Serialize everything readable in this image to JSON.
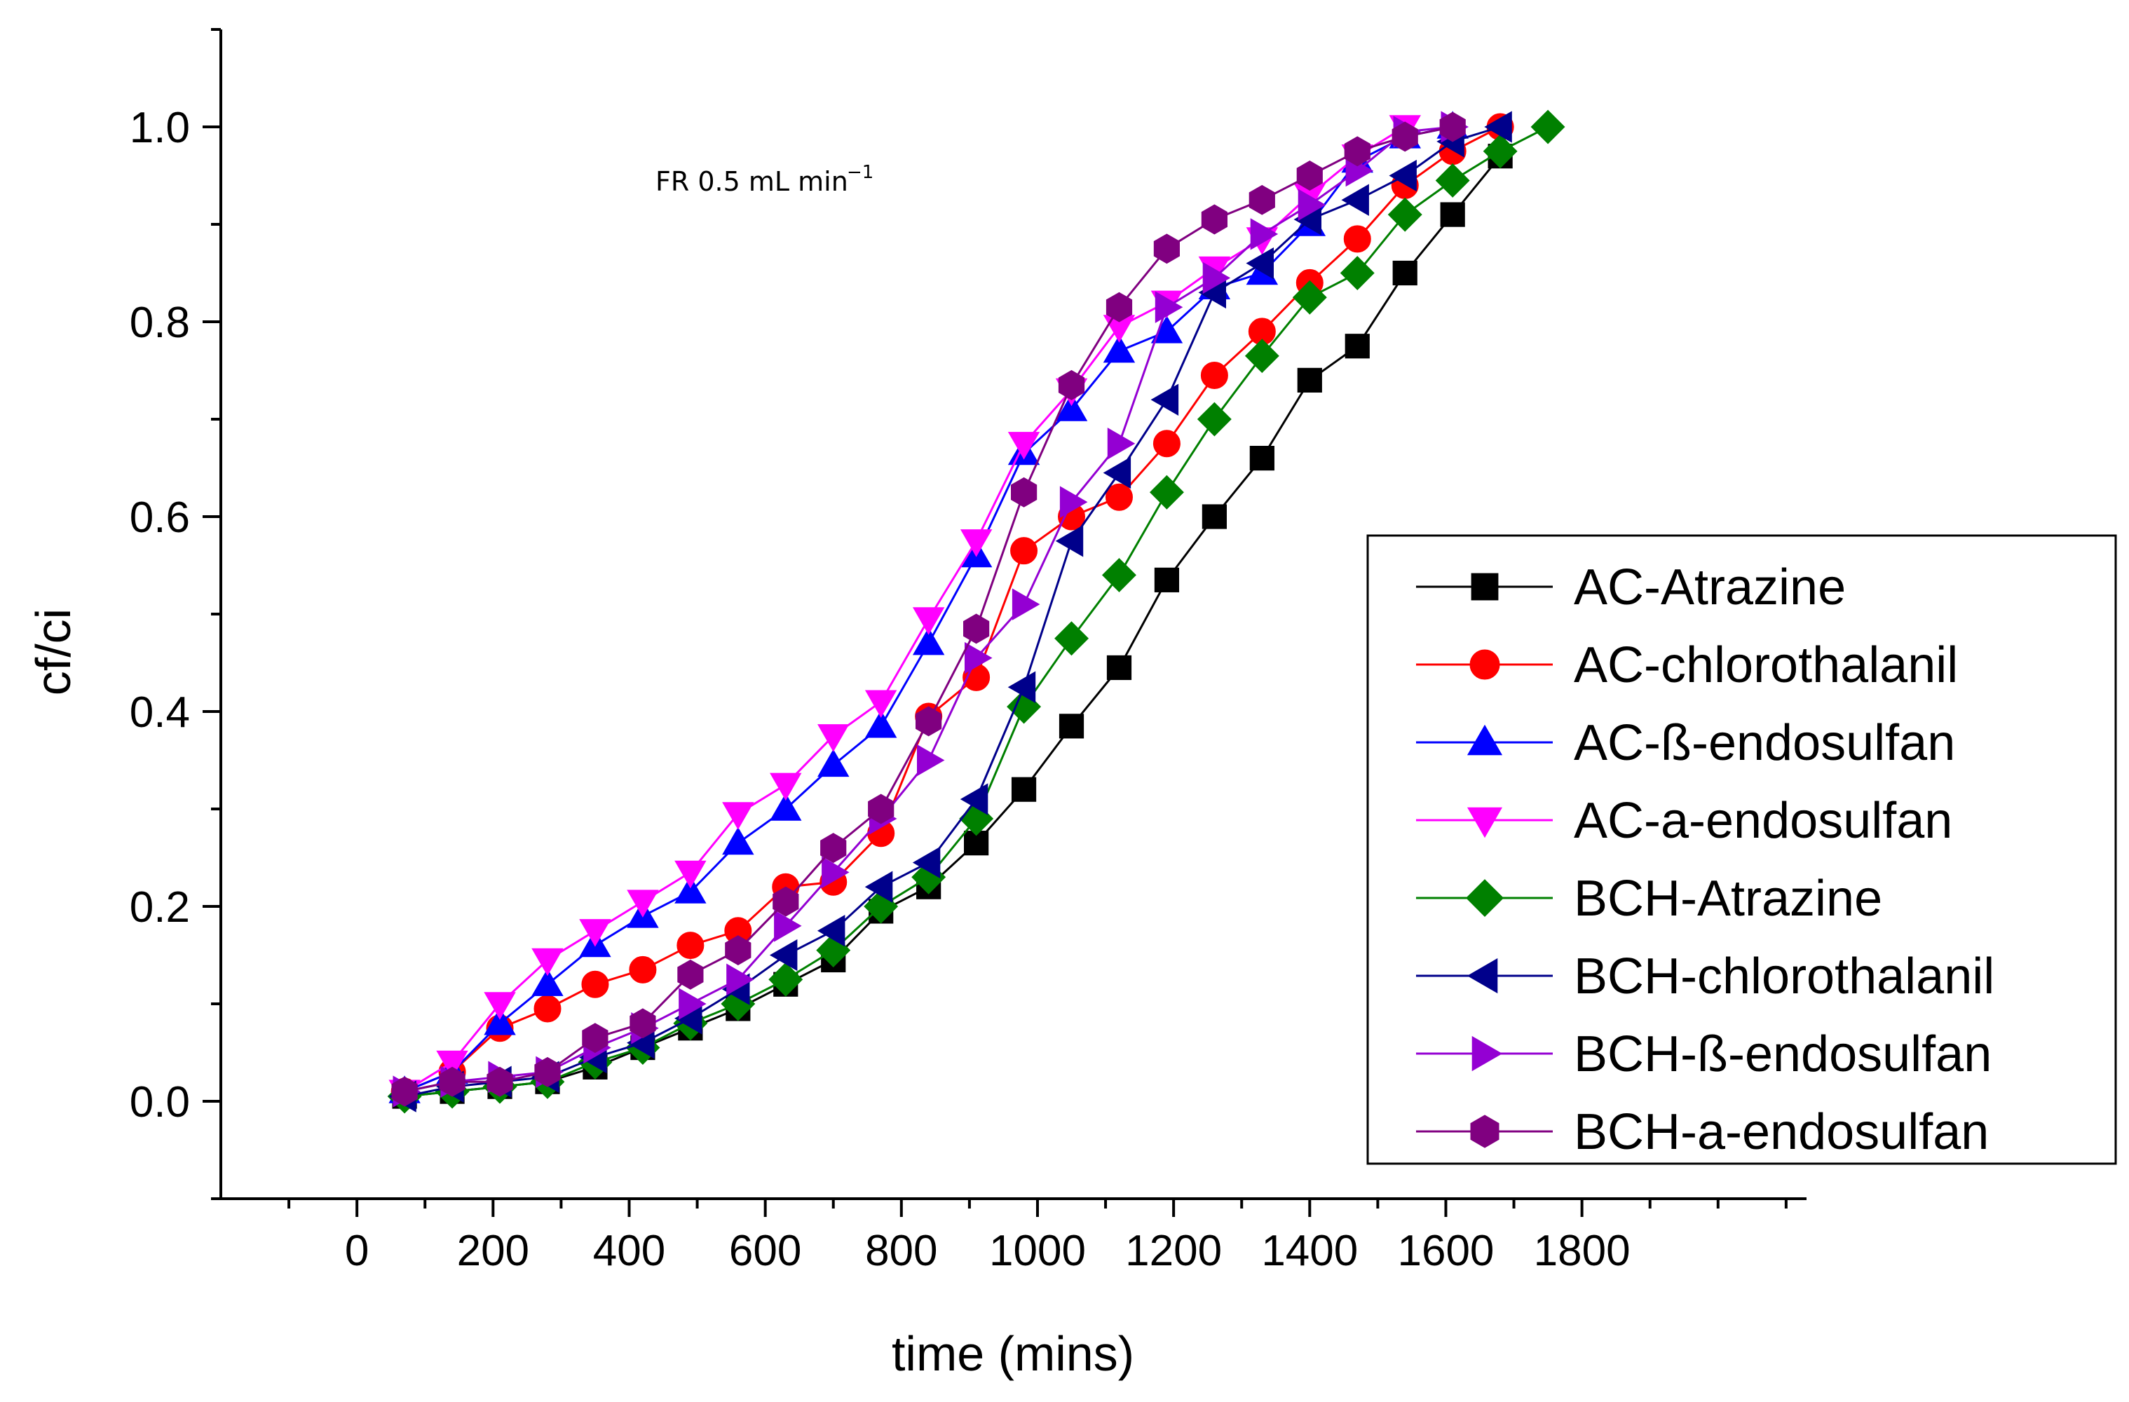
{
  "chart_data": {
    "type": "line",
    "xlabel": "time (mins)",
    "ylabel": "cf/ci",
    "xlim": [
      -200,
      2130
    ],
    "ylim": [
      -0.1,
      1.1
    ],
    "x_ticks": [
      0,
      200,
      400,
      600,
      800,
      1000,
      1200,
      1400,
      1600,
      1800
    ],
    "x_tick_labels": [
      "0",
      "200",
      "400",
      "600",
      "800",
      "1000",
      "1200",
      "1400",
      "1600",
      "1800"
    ],
    "y_ticks": [
      0.0,
      0.2,
      0.4,
      0.6,
      0.8,
      1.0
    ],
    "y_tick_labels": [
      "0.0",
      "0.2",
      "0.4",
      "0.6",
      "0.8",
      "1.0"
    ],
    "grid": false,
    "legend_position": "bottom-right",
    "annotation": {
      "text": "FR 0.5 mL min",
      "superscript": "−1"
    },
    "x": [
      70,
      140,
      210,
      280,
      350,
      420,
      490,
      560,
      630,
      700,
      770,
      840,
      910,
      980,
      1050,
      1120,
      1190,
      1260,
      1330,
      1400,
      1470,
      1540,
      1610,
      1680,
      1750
    ],
    "series": [
      {
        "name": "AC-Atrazine",
        "color": "#000000",
        "marker": "square",
        "x": [
          70,
          140,
          210,
          280,
          350,
          420,
          490,
          560,
          630,
          700,
          770,
          840,
          910,
          980,
          1050,
          1120,
          1190,
          1260,
          1330,
          1400,
          1470,
          1540,
          1610,
          1680
        ],
        "values": [
          0.005,
          0.01,
          0.015,
          0.02,
          0.035,
          0.055,
          0.075,
          0.095,
          0.12,
          0.145,
          0.195,
          0.22,
          0.265,
          0.32,
          0.385,
          0.445,
          0.535,
          0.6,
          0.66,
          0.74,
          0.775,
          0.85,
          0.91,
          0.97
        ]
      },
      {
        "name": "AC-chlorothalanil",
        "color": "#ff0000",
        "marker": "circle",
        "x": [
          70,
          140,
          210,
          280,
          350,
          420,
          490,
          560,
          630,
          700,
          770,
          840,
          910,
          980,
          1050,
          1120,
          1190,
          1260,
          1330,
          1400,
          1470,
          1540,
          1610,
          1680
        ],
        "values": [
          0.01,
          0.03,
          0.075,
          0.095,
          0.12,
          0.135,
          0.16,
          0.175,
          0.22,
          0.225,
          0.275,
          0.395,
          0.435,
          0.565,
          0.6,
          0.62,
          0.675,
          0.745,
          0.79,
          0.84,
          0.885,
          0.94,
          0.975,
          1.0
        ]
      },
      {
        "name": "AC-ß-endosulfan",
        "color": "#0000ff",
        "marker": "triangle-up",
        "x": [
          70,
          140,
          210,
          280,
          350,
          420,
          490,
          560,
          630,
          700,
          770,
          840,
          910,
          980,
          1050,
          1120,
          1190,
          1260,
          1330,
          1400,
          1470,
          1540,
          1610
        ],
        "values": [
          0.01,
          0.03,
          0.08,
          0.12,
          0.16,
          0.19,
          0.215,
          0.265,
          0.3,
          0.345,
          0.385,
          0.47,
          0.56,
          0.665,
          0.71,
          0.77,
          0.79,
          0.835,
          0.85,
          0.9,
          0.965,
          0.99,
          1.0
        ]
      },
      {
        "name": "AC-a-endosulfan",
        "color": "#ff00ff",
        "marker": "triangle-down",
        "x": [
          70,
          140,
          210,
          280,
          350,
          420,
          490,
          560,
          630,
          700,
          770,
          840,
          910,
          980,
          1050,
          1120,
          1190,
          1260,
          1330,
          1400,
          1470,
          1540
        ],
        "values": [
          0.01,
          0.04,
          0.1,
          0.145,
          0.175,
          0.205,
          0.235,
          0.295,
          0.325,
          0.375,
          0.41,
          0.495,
          0.575,
          0.675,
          0.73,
          0.795,
          0.82,
          0.855,
          0.885,
          0.93,
          0.97,
          1.0
        ]
      },
      {
        "name": "BCH-Atrazine",
        "color": "#008000",
        "marker": "diamond",
        "x": [
          70,
          140,
          210,
          280,
          350,
          420,
          490,
          560,
          630,
          700,
          770,
          840,
          910,
          980,
          1050,
          1120,
          1190,
          1260,
          1330,
          1400,
          1470,
          1540,
          1610,
          1680,
          1750
        ],
        "values": [
          0.005,
          0.01,
          0.015,
          0.02,
          0.04,
          0.055,
          0.08,
          0.1,
          0.125,
          0.155,
          0.2,
          0.23,
          0.29,
          0.405,
          0.475,
          0.54,
          0.625,
          0.7,
          0.765,
          0.825,
          0.85,
          0.91,
          0.945,
          0.975,
          1.0
        ]
      },
      {
        "name": "BCH-chlorothalanil",
        "color": "#00008b",
        "marker": "triangle-left",
        "x": [
          70,
          140,
          210,
          280,
          350,
          420,
          490,
          560,
          630,
          700,
          770,
          840,
          910,
          980,
          1050,
          1120,
          1190,
          1260,
          1330,
          1400,
          1470,
          1540,
          1610,
          1680
        ],
        "values": [
          0.005,
          0.015,
          0.02,
          0.025,
          0.045,
          0.06,
          0.085,
          0.115,
          0.15,
          0.175,
          0.22,
          0.245,
          0.31,
          0.425,
          0.575,
          0.645,
          0.72,
          0.83,
          0.86,
          0.905,
          0.925,
          0.95,
          0.985,
          1.0
        ]
      },
      {
        "name": "BCH-ß-endosulfan",
        "color": "#9400d3",
        "marker": "triangle-right",
        "x": [
          70,
          140,
          210,
          280,
          350,
          420,
          490,
          560,
          630,
          700,
          770,
          840,
          910,
          980,
          1050,
          1120,
          1190,
          1260,
          1330,
          1400,
          1470,
          1540,
          1610
        ],
        "values": [
          0.01,
          0.02,
          0.025,
          0.03,
          0.055,
          0.075,
          0.1,
          0.125,
          0.18,
          0.235,
          0.29,
          0.35,
          0.455,
          0.51,
          0.615,
          0.675,
          0.815,
          0.845,
          0.89,
          0.92,
          0.955,
          0.995,
          1.0
        ]
      },
      {
        "name": "BCH-a-endosulfan",
        "color": "#800080",
        "marker": "hexagon",
        "x": [
          70,
          140,
          210,
          280,
          350,
          420,
          490,
          560,
          630,
          700,
          770,
          840,
          910,
          980,
          1050,
          1120,
          1190,
          1260,
          1330,
          1400,
          1470,
          1540,
          1610
        ],
        "values": [
          0.01,
          0.02,
          0.02,
          0.03,
          0.065,
          0.08,
          0.13,
          0.155,
          0.205,
          0.26,
          0.3,
          0.39,
          0.485,
          0.625,
          0.735,
          0.815,
          0.875,
          0.905,
          0.925,
          0.95,
          0.975,
          0.99,
          1.0
        ]
      }
    ]
  }
}
